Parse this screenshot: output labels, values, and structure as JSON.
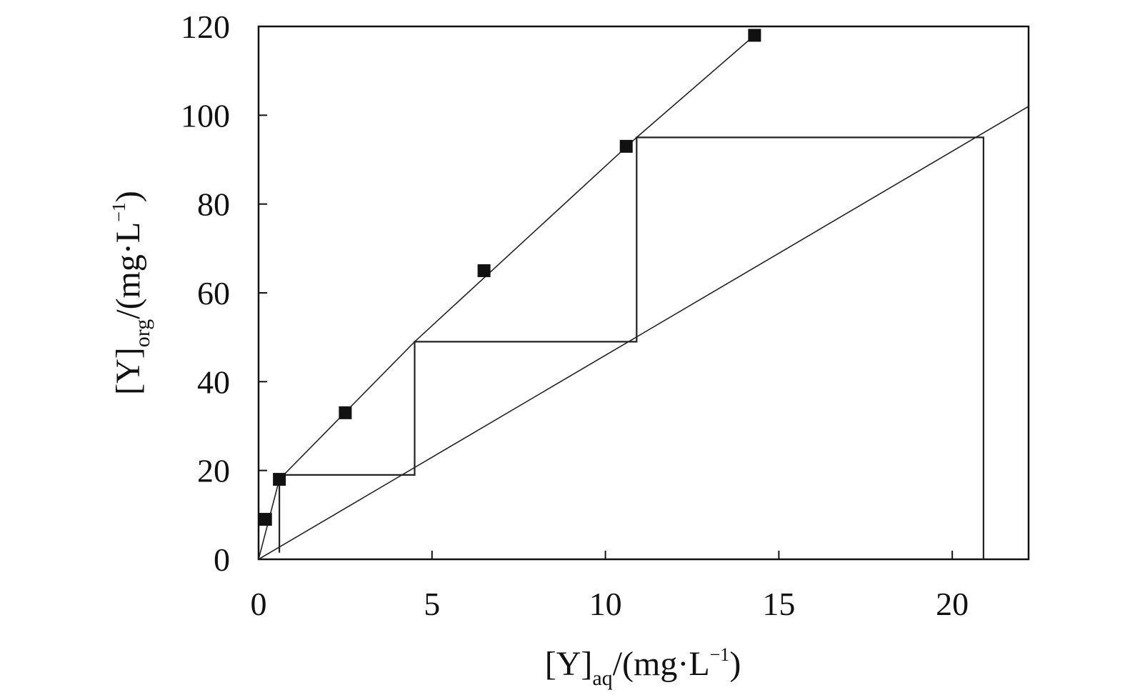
{
  "chart_data": {
    "type": "line",
    "title": "",
    "xlabel": {
      "main": "[Y]",
      "sub": "aq",
      "unit_open": "/(mg·L",
      "sup": "−1",
      "unit_close": ")"
    },
    "ylabel": {
      "main": "[Y]",
      "sub": "org",
      "unit_open": "/(mg·L",
      "sup": "−1",
      "unit_close": ")"
    },
    "xlim": [
      0,
      22.2
    ],
    "ylim": [
      0,
      120
    ],
    "xticks": [
      "0",
      "5",
      "10",
      "15",
      "20"
    ],
    "yticks": [
      "0",
      "20",
      "40",
      "60",
      "80",
      "100",
      "120"
    ],
    "grid": false,
    "legend": "none",
    "series": [
      {
        "role": "equilibrium-points",
        "marker": "square",
        "x": [
          0.2,
          0.6,
          2.5,
          6.5,
          10.6,
          14.3
        ],
        "y": [
          9,
          18,
          33,
          65,
          93,
          118
        ]
      },
      {
        "role": "equilibrium-curve",
        "x": [
          0,
          0.6,
          4.5,
          10.9,
          14.3
        ],
        "y": [
          0,
          18,
          49,
          95,
          118
        ]
      },
      {
        "role": "operating-line",
        "x": [
          0,
          22.2
        ],
        "y": [
          0,
          102
        ]
      },
      {
        "role": "mccabe-thiele-steps",
        "x": [
          20.9,
          20.9,
          10.9,
          10.9,
          4.5,
          4.5,
          0.6,
          0.6
        ],
        "y": [
          0,
          95,
          95,
          49,
          49,
          19,
          19,
          1.5
        ]
      }
    ],
    "colors": {
      "line": "#222222",
      "marker": "#111111",
      "axis": "#111111"
    }
  }
}
